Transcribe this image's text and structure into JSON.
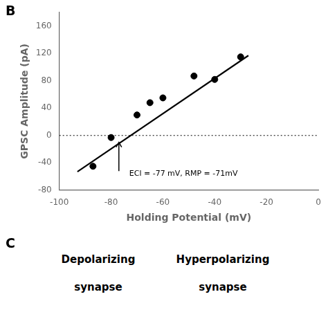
{
  "chart_data": {
    "type": "scatter",
    "xlabel": "Holding Potential (mV)",
    "ylabel": "GPSC Amplitude (pA)",
    "series": [
      {
        "type": "scatter",
        "x": [
          -87,
          -80,
          -70,
          -65,
          -60,
          -48,
          -40,
          -30
        ],
        "values": [
          -45,
          -3,
          30,
          48,
          55,
          87,
          82,
          115
        ],
        "color": "#000000",
        "marker": "circle"
      },
      {
        "type": "line",
        "x": [
          -93,
          -27
        ],
        "values": [
          -53,
          117
        ],
        "color": "#000000",
        "line_style": "solid"
      }
    ],
    "reference_lines": [
      {
        "y": 0,
        "color": "#000000",
        "line_style": "dotted"
      }
    ],
    "annotations": [
      {
        "type": "arrow",
        "x": -77,
        "y_from": -52,
        "y_to": -10,
        "color": "#000000"
      },
      {
        "type": "text",
        "text": "ECl = -77 mV, RMP = -71mV",
        "x": -73,
        "y": -50,
        "color": "#000000"
      }
    ],
    "xlim": [
      -100,
      0
    ],
    "ylim": [
      -80,
      180
    ],
    "xticks": [
      -100,
      -80,
      -60,
      -40,
      -20,
      0
    ],
    "yticks": [
      -80,
      -40,
      0,
      40,
      80,
      120,
      160
    ],
    "grid": false,
    "panel_labels": [
      "B",
      "C"
    ],
    "bottom_labels": [
      [
        "Depolarizing",
        "synapse"
      ],
      [
        "Hyperpolarizing",
        "synapse"
      ]
    ]
  }
}
